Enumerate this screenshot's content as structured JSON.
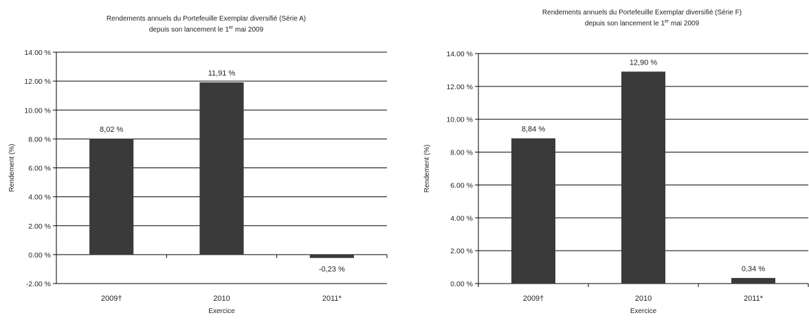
{
  "chart_data": [
    {
      "type": "bar",
      "title_line1": "Rendements annuels du Portefeuille Exemplar diversifié (Série A)",
      "title_line2_prefix": "depuis son lancement le 1",
      "title_line2_sup": "er",
      "title_line2_suffix": " mai 2009",
      "xlabel": "Exercice",
      "ylabel": "Rendement (%)",
      "categories": [
        "2009†",
        "2010",
        "2011*"
      ],
      "values": [
        8.02,
        11.91,
        -0.23
      ],
      "data_labels": [
        "8,02 %",
        "11,91 %",
        "-0,23 %"
      ],
      "ylim": [
        -2,
        14
      ],
      "yticks": [
        -2,
        0,
        2,
        4,
        6,
        8,
        10,
        12,
        14
      ],
      "ytick_labels": [
        "-2.00 %",
        "0.00 %",
        "2.00 %",
        "4.00 %",
        "6.00 %",
        "8.00 %",
        "10.00 %",
        "12.00 %",
        "14.00 %"
      ],
      "grid": true,
      "bar_color": "#3a3a3a"
    },
    {
      "type": "bar",
      "title_line1": "Rendements annuels du Portefeuille Exemplar diversifié (Série F)",
      "title_line2_prefix": "depuis son lancement le 1",
      "title_line2_sup": "er",
      "title_line2_suffix": " mai 2009",
      "xlabel": "Exercice",
      "ylabel": "Rendement (%)",
      "categories": [
        "2009†",
        "2010",
        "2011*"
      ],
      "values": [
        8.84,
        12.9,
        0.34
      ],
      "data_labels": [
        "8,84 %",
        "12,90 %",
        "0,34 %"
      ],
      "ylim": [
        0,
        14
      ],
      "yticks": [
        0,
        2,
        4,
        6,
        8,
        10,
        12,
        14
      ],
      "ytick_labels": [
        "0.00 %",
        "2.00 %",
        "4.00 %",
        "6.00 %",
        "8.00 %",
        "10.00 %",
        "12.00 %",
        "14.00 %"
      ],
      "grid": true,
      "bar_color": "#3a3a3a"
    }
  ]
}
